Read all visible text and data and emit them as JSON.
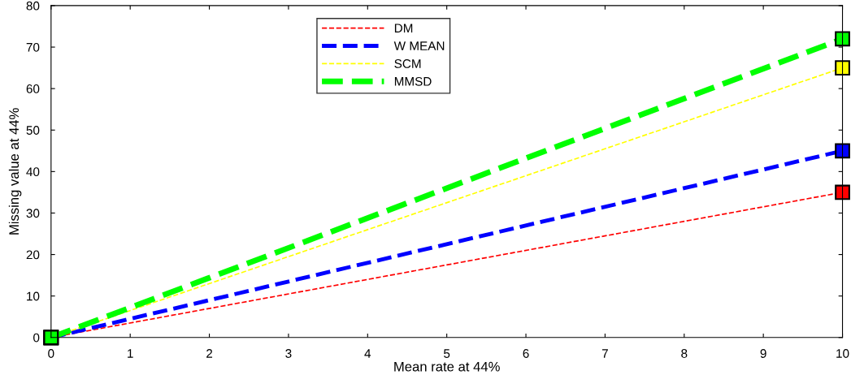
{
  "chart_data": {
    "type": "line",
    "xlabel": "Mean rate at 44%",
    "ylabel": "Missing value at 44%",
    "x": [
      0,
      10
    ],
    "series": [
      {
        "name": "DM",
        "color": "#ff0000",
        "values": [
          0,
          35
        ]
      },
      {
        "name": "W MEAN",
        "color": "#0000ff",
        "values": [
          0,
          45
        ]
      },
      {
        "name": "SCM",
        "color": "#ffff00",
        "values": [
          0,
          65
        ]
      },
      {
        "name": "MMSD",
        "color": "#00ff00",
        "values": [
          0,
          72
        ]
      }
    ],
    "xlim": [
      0,
      10
    ],
    "xticks": [
      0,
      1,
      2,
      3,
      4,
      5,
      6,
      7,
      8,
      9,
      10
    ],
    "ylim": [
      0,
      80
    ],
    "yticks": [
      0,
      10,
      20,
      30,
      40,
      50,
      60,
      70,
      80
    ],
    "grid": false,
    "legend": "top",
    "marker": "square",
    "line_style": "dashed"
  }
}
